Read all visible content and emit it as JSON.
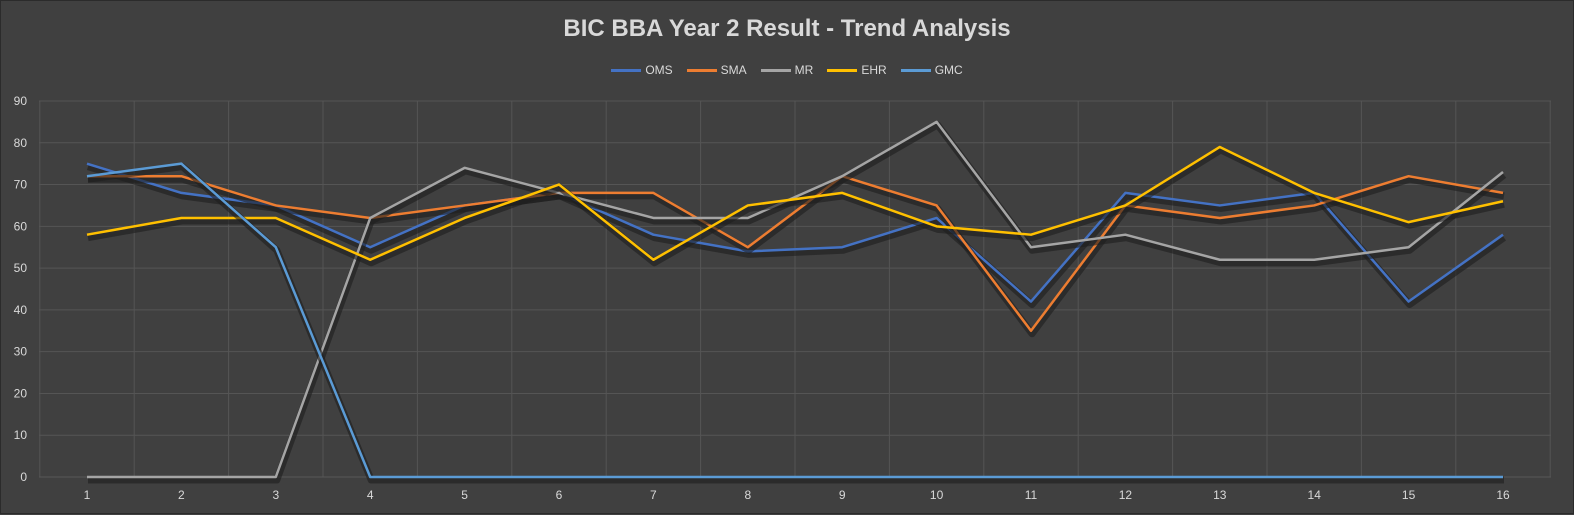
{
  "chart_data": {
    "type": "line",
    "title": "BIC BBA Year 2 Result - Trend Analysis",
    "x": [
      "1",
      "2",
      "3",
      "4",
      "5",
      "6",
      "7",
      "8",
      "9",
      "10",
      "11",
      "12",
      "13",
      "14",
      "15",
      "16"
    ],
    "ylim": [
      0,
      90
    ],
    "yticks": [
      "0",
      "10",
      "20",
      "30",
      "40",
      "50",
      "60",
      "70",
      "80",
      "90"
    ],
    "grid": true,
    "legend_position": "top",
    "series": [
      {
        "name": "OMS",
        "color": "#4472C4",
        "values": [
          75,
          68,
          65,
          55,
          65,
          68,
          58,
          54,
          55,
          62,
          42,
          68,
          65,
          68,
          42,
          58
        ]
      },
      {
        "name": "SMA",
        "color": "#ED7D31",
        "values": [
          72,
          72,
          65,
          62,
          65,
          68,
          68,
          55,
          72,
          65,
          35,
          65,
          62,
          65,
          72,
          68
        ]
      },
      {
        "name": "MR",
        "color": "#A5A5A5",
        "values": [
          0,
          0,
          0,
          62,
          74,
          68,
          62,
          62,
          72,
          85,
          55,
          58,
          52,
          52,
          55,
          73
        ]
      },
      {
        "name": "EHR",
        "color": "#FFC000",
        "values": [
          58,
          62,
          62,
          52,
          62,
          70,
          52,
          65,
          68,
          60,
          58,
          65,
          79,
          68,
          61,
          66
        ]
      },
      {
        "name": "GMC",
        "color": "#5B9BD5",
        "values": [
          72,
          75,
          55,
          0,
          0,
          0,
          0,
          0,
          0,
          0,
          0,
          0,
          0,
          0,
          0,
          0
        ]
      }
    ]
  }
}
